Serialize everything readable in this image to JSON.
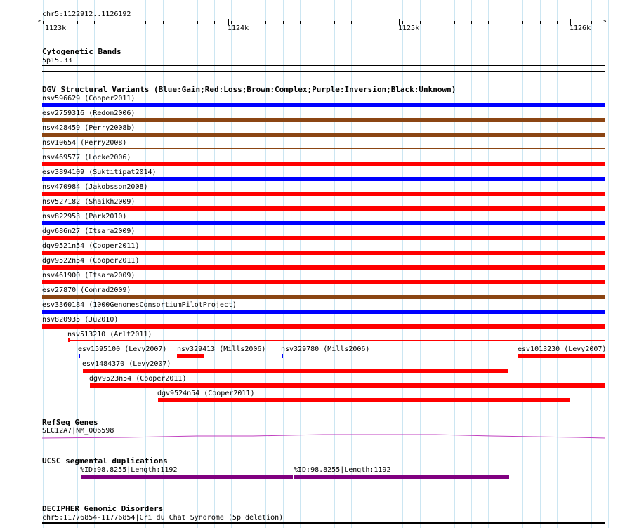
{
  "coordinates": "chr5:1122912..1126192",
  "ruler": {
    "ticks": [
      "1123k",
      "1124k",
      "1125k",
      "1126k"
    ],
    "start": 1122912,
    "end": 1126192
  },
  "tracks": {
    "cytoband": {
      "title": "Cytogenetic Bands",
      "label": "5p15.33"
    },
    "dgv": {
      "title": "DGV Structural Variants (Blue:Gain;Red:Loss;Brown:Complex;Purple:Inversion;Black:Unknown)",
      "colors": {
        "gain": "#0000ff",
        "loss": "#ff0000",
        "complex": "#8b4513",
        "inversion": "#800080",
        "unknown": "#000000"
      },
      "features": [
        {
          "label": "nsv596629 (Cooper2011)",
          "type": "gain"
        },
        {
          "label": "esv2759316 (Redon2006)",
          "type": "complex"
        },
        {
          "label": "nsv428459 (Perry2008b)",
          "type": "complex"
        },
        {
          "label": "nsv10654 (Perry2008)",
          "type": "complex"
        },
        {
          "label": "nsv469577 (Locke2006)",
          "type": "loss"
        },
        {
          "label": "esv3894109 (Suktitipat2014)",
          "type": "gain"
        },
        {
          "label": "nsv470984 (Jakobsson2008)",
          "type": "loss"
        },
        {
          "label": "nsv527182 (Shaikh2009)",
          "type": "loss"
        },
        {
          "label": "nsv822953 (Park2010)",
          "type": "gain"
        },
        {
          "label": "dgv686n27 (Itsara2009)",
          "type": "loss"
        },
        {
          "label": "dgv9521n54 (Cooper2011)",
          "type": "loss"
        },
        {
          "label": "dgv9522n54 (Cooper2011)",
          "type": "loss"
        },
        {
          "label": "nsv461900 (Itsara2009)",
          "type": "loss"
        },
        {
          "label": "esv27870 (Conrad2009)",
          "type": "complex"
        },
        {
          "label": "esv3360184 (1000GenomesConsortiumPilotProject)",
          "type": "gain"
        },
        {
          "label": "nsv820935 (Ju2010)",
          "type": "loss"
        },
        {
          "label": "nsv513210 (Arlt2011)",
          "type": "loss"
        },
        {
          "label": "esv1595100 (Levy2007)",
          "type": "gain"
        },
        {
          "label": "nsv329413 (Mills2006)",
          "type": "loss"
        },
        {
          "label": "nsv329780 (Mills2006)",
          "type": "gain"
        },
        {
          "label": "esv1013230 (Levy2007)",
          "type": "loss"
        },
        {
          "label": "esv1484370 (Levy2007)",
          "type": "loss"
        },
        {
          "label": "dgv9523n54 (Cooper2011)",
          "type": "loss"
        },
        {
          "label": "dgv9524n54 (Cooper2011)",
          "type": "loss"
        }
      ]
    },
    "refseq": {
      "title": "RefSeq Genes",
      "label": "SLC12A7|NM_006598",
      "color": "#c000c0"
    },
    "segdup": {
      "title": "UCSC segmental duplications",
      "labels": [
        "%ID:98.8255|Length:1192",
        "%ID:98.8255|Length:1192"
      ],
      "color": "#800080"
    },
    "decipher": {
      "title": "DECIPHER Genomic Disorders",
      "label": "chr5:11776854-11776854|Cri du Chat Syndrome (5p deletion)"
    }
  }
}
